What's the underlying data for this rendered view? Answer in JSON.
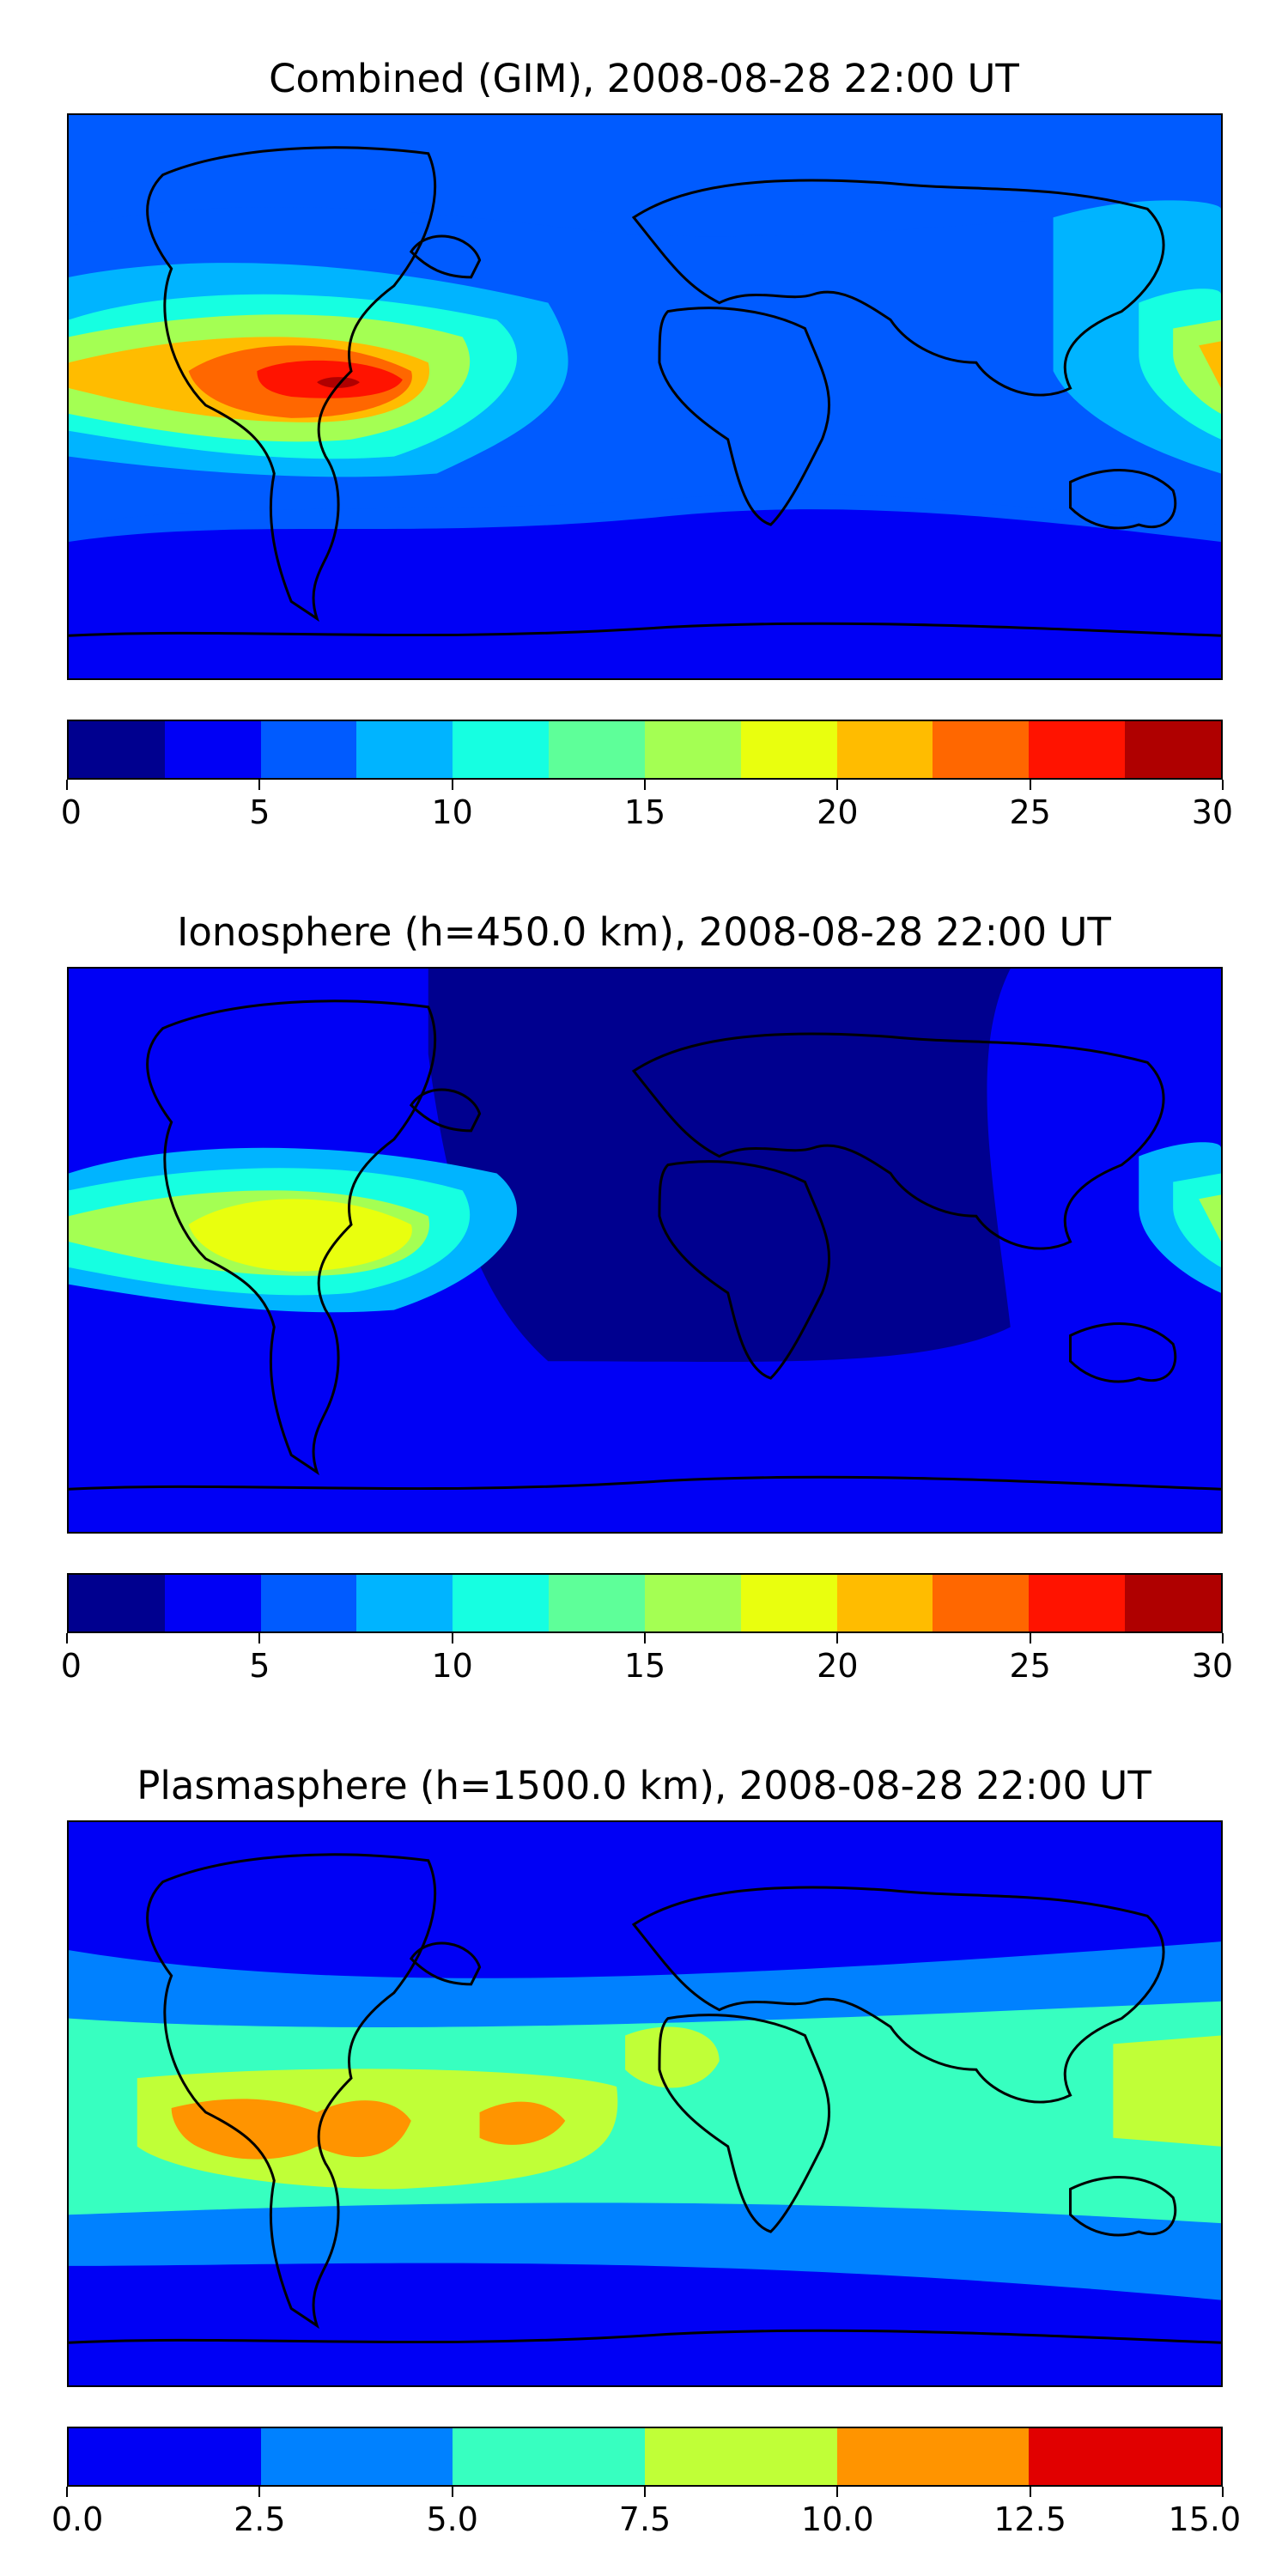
{
  "panels": [
    {
      "title": "Combined (GIM), 2008-08-28 22:00 UT",
      "colorbar": {
        "colors": [
          "#00008f",
          "#0000f5",
          "#005bff",
          "#00b4ff",
          "#16ffe1",
          "#5eff99",
          "#a4ff53",
          "#e9ff0e",
          "#ffbc00",
          "#ff6700",
          "#ff1300",
          "#af0000"
        ],
        "tick_labels": [
          "0",
          "5",
          "10",
          "15",
          "20",
          "25",
          "30"
        ]
      },
      "field": [
        {
          "level": 1,
          "shape": "band-south"
        },
        {
          "level": 2,
          "shape": "band-mid"
        },
        {
          "level": 3,
          "shape": "band-tropics"
        },
        {
          "level": 4,
          "shape": "pacific-core-outer"
        },
        {
          "level": 6,
          "shape": "pacific-core"
        },
        {
          "level": 8,
          "shape": "pacific-core-inner"
        },
        {
          "level": 9,
          "shape": "pacific-peak"
        },
        {
          "level": 10,
          "shape": "pacific-max"
        },
        {
          "level": 11,
          "shape": "pacific-dot"
        }
      ]
    },
    {
      "title": "Ionosphere  (h=450.0 km), 2008-08-28 22:00 UT",
      "colorbar": {
        "colors": [
          "#00008f",
          "#0000f5",
          "#005bff",
          "#00b4ff",
          "#16ffe1",
          "#5eff99",
          "#a4ff53",
          "#e9ff0e",
          "#ffbc00",
          "#ff6700",
          "#ff1300",
          "#af0000"
        ],
        "tick_labels": [
          "0",
          "5",
          "10",
          "15",
          "20",
          "25",
          "30"
        ]
      },
      "field": [
        {
          "level": 0,
          "shape": "atlantic-night"
        },
        {
          "level": 3,
          "shape": "pacific-core-outer"
        },
        {
          "level": 4,
          "shape": "pacific-core"
        },
        {
          "level": 6,
          "shape": "pacific-core-inner"
        },
        {
          "level": 7,
          "shape": "pacific-peak"
        }
      ]
    },
    {
      "title": "Plasmasphere (h=1500.0 km), 2008-08-28 22:00 UT",
      "colorbar": {
        "colors": [
          "#0000f5",
          "#0081ff",
          "#37ffc0",
          "#c0ff37",
          "#ff9400",
          "#e10000"
        ],
        "tick_labels": [
          "0.0",
          "2.5",
          "5.0",
          "7.5",
          "10.0",
          "12.5",
          "15.0"
        ]
      },
      "field": [
        {
          "level": 1,
          "shape": "plasma-mid"
        },
        {
          "level": 2,
          "shape": "plasma-tropics"
        },
        {
          "level": 3,
          "shape": "plasma-core"
        },
        {
          "level": 4,
          "shape": "plasma-peak"
        }
      ]
    }
  ]
}
